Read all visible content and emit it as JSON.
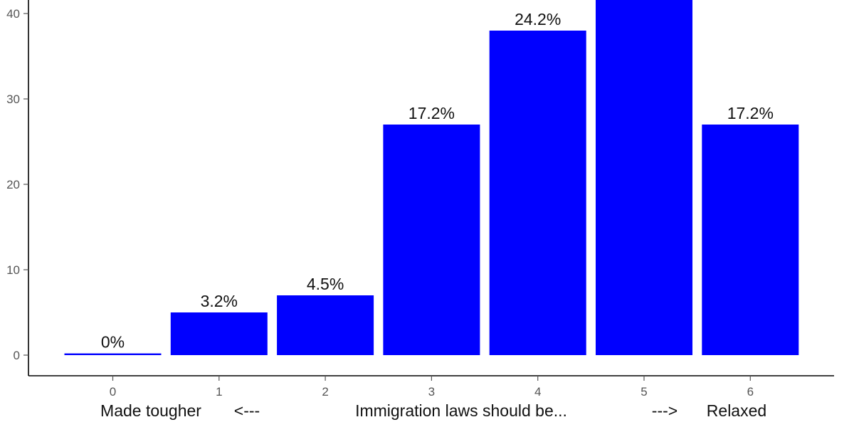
{
  "chart_data": {
    "type": "bar",
    "categories": [
      "0",
      "1",
      "2",
      "3",
      "4",
      "5",
      "6"
    ],
    "values": [
      0.2,
      5,
      7,
      27,
      38,
      43,
      27
    ],
    "data_labels": [
      "0%",
      "3.2%",
      "4.5%",
      "17.2%",
      "24.2%",
      "",
      "17.2%"
    ],
    "y_ticks": [
      0,
      10,
      20,
      30,
      40
    ],
    "ylim": [
      -2.3,
      40
    ],
    "bar_color": "#0000ff",
    "grid": false,
    "xlabel_parts": {
      "left": "Made tougher",
      "left_arrow": "<---",
      "center": "Immigration laws should be...",
      "right_arrow": "--->",
      "right": "Relaxed"
    }
  }
}
